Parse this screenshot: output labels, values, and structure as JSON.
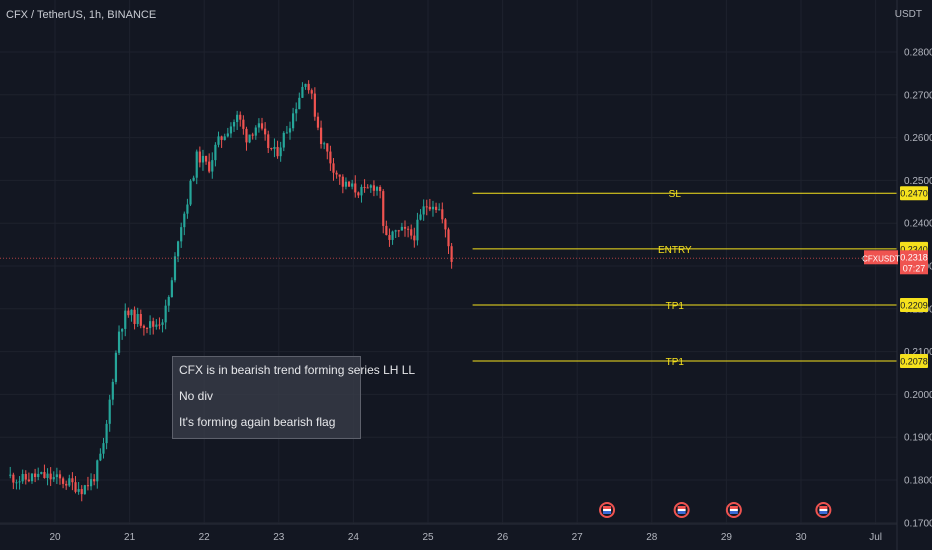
{
  "header": {
    "symbol_line": "CFX / TetherUS, 1h, BINANCE",
    "unit": "USDT"
  },
  "note": {
    "lines": [
      "CFX is in bearish trend forming series LH LL",
      "No div",
      "It's forming again bearish flag"
    ]
  },
  "colors": {
    "background": "#131722",
    "up": "#26a69a",
    "down": "#ef5350",
    "level_line": "#f5e11d",
    "price_tag": "#ef5350"
  },
  "chart_data": {
    "type": "candlestick",
    "x_axis": {
      "ticks": [
        "20",
        "21",
        "22",
        "23",
        "24",
        "25",
        "26",
        "27",
        "28",
        "29",
        "30",
        "Jul"
      ]
    },
    "y_axis": {
      "range": [
        0.165,
        0.285
      ],
      "ticks": [
        "0.1700",
        "0.1800",
        "0.1900",
        "0.2000",
        "0.2100",
        "0.2200",
        "0.2300",
        "0.2400",
        "0.2500",
        "0.2600",
        "0.2700",
        "0.2800"
      ]
    },
    "levels": [
      {
        "label": "SL",
        "value": 0.247,
        "tag": "0.2470"
      },
      {
        "label": "ENTRY",
        "value": 0.234,
        "tag": "0.2340"
      },
      {
        "label": "TP1",
        "value": 0.2209,
        "tag": "0.2209"
      },
      {
        "label": "TP1",
        "value": 0.2078,
        "tag": "0.2078"
      }
    ],
    "last_price": {
      "symbol": "CFXUSDT",
      "value": 0.2318,
      "tag": "0.2318",
      "countdown": "07:27"
    },
    "events": [
      "27.4",
      "28.4",
      "29.1",
      "30.3"
    ],
    "price_path": [
      [
        19.4,
        0.181
      ],
      [
        19.6,
        0.18
      ],
      [
        19.8,
        0.181
      ],
      [
        20.0,
        0.1805
      ],
      [
        20.2,
        0.1795
      ],
      [
        20.4,
        0.178
      ],
      [
        20.55,
        0.18
      ],
      [
        20.7,
        0.188
      ],
      [
        20.8,
        0.202
      ],
      [
        20.9,
        0.215
      ],
      [
        21.0,
        0.219
      ],
      [
        21.1,
        0.218
      ],
      [
        21.2,
        0.217
      ],
      [
        21.35,
        0.216
      ],
      [
        21.5,
        0.218
      ],
      [
        21.6,
        0.225
      ],
      [
        21.7,
        0.238
      ],
      [
        21.8,
        0.244
      ],
      [
        21.95,
        0.256
      ],
      [
        22.1,
        0.253
      ],
      [
        22.2,
        0.258
      ],
      [
        22.35,
        0.262
      ],
      [
        22.5,
        0.265
      ],
      [
        22.6,
        0.26
      ],
      [
        22.75,
        0.263
      ],
      [
        22.9,
        0.258
      ],
      [
        23.0,
        0.256
      ],
      [
        23.1,
        0.26
      ],
      [
        23.2,
        0.264
      ],
      [
        23.3,
        0.269
      ],
      [
        23.4,
        0.274
      ],
      [
        23.5,
        0.268
      ],
      [
        23.6,
        0.26
      ],
      [
        23.75,
        0.254
      ],
      [
        23.9,
        0.249
      ],
      [
        24.05,
        0.248
      ],
      [
        24.2,
        0.247
      ],
      [
        24.3,
        0.249
      ],
      [
        24.4,
        0.248
      ],
      [
        24.45,
        0.236
      ],
      [
        24.55,
        0.237
      ],
      [
        24.7,
        0.238
      ],
      [
        24.85,
        0.237
      ],
      [
        25.0,
        0.244
      ],
      [
        25.1,
        0.245
      ],
      [
        25.2,
        0.243
      ],
      [
        25.3,
        0.236
      ],
      [
        25.35,
        0.2318
      ]
    ]
  }
}
